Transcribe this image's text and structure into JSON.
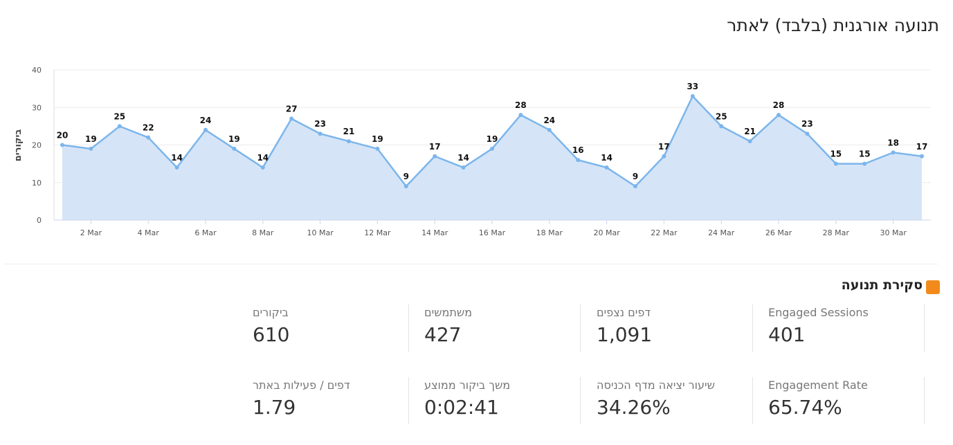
{
  "chart_data": {
    "type": "area",
    "title": "תנועה אורגנית (בלבד) לאתר",
    "y_label": "ביקורים",
    "categories": [
      null,
      "2 Mar",
      null,
      "4 Mar",
      null,
      "6 Mar",
      null,
      "8 Mar",
      null,
      "10 Mar",
      null,
      "12 Mar",
      null,
      "14 Mar",
      null,
      "16 Mar",
      null,
      "18 Mar",
      null,
      "20 Mar",
      null,
      "22 Mar",
      null,
      "24 Mar",
      null,
      "26 Mar",
      null,
      "28 Mar",
      null,
      "30 Mar",
      null
    ],
    "values": [
      20,
      19,
      25,
      22,
      14,
      24,
      19,
      14,
      27,
      23,
      21,
      19,
      9,
      17,
      14,
      19,
      28,
      24,
      16,
      14,
      9,
      17,
      33,
      25,
      21,
      28,
      23,
      15,
      15,
      18,
      17
    ],
    "color": "#7cb5ec",
    "fill": "#d5e5f7",
    "ylim": [
      0,
      40
    ],
    "yticks": [
      0,
      10,
      20,
      30,
      40
    ],
    "grid": true
  },
  "overview": {
    "title": "סקירת תנועה",
    "rows": [
      [
        {
          "label": "Engaged Sessions",
          "value": "401"
        },
        {
          "label": "דפים נצפים",
          "value": "1,091"
        },
        {
          "label": "משתמשים",
          "value": "427"
        },
        {
          "label": "ביקורים",
          "value": "610"
        }
      ],
      [
        {
          "label": "Engagement Rate",
          "value": "65.74%"
        },
        {
          "label": "שיעור יציאה מדף הכניסה",
          "value": "34.26%"
        },
        {
          "label": "משך ביקור ממוצע",
          "value": "0:02:41"
        },
        {
          "label": "דפים / פעילות באתר",
          "value": "1.79"
        }
      ]
    ]
  }
}
